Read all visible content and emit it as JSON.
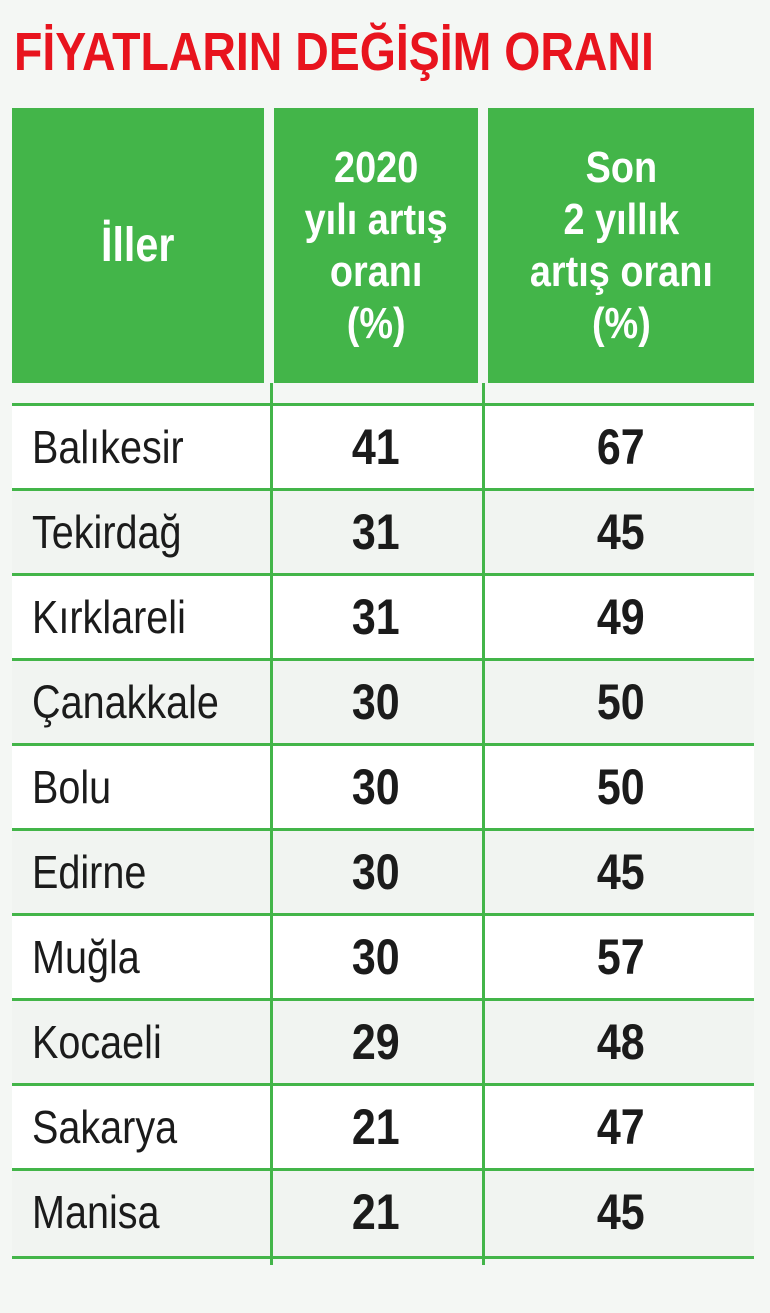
{
  "title": "FİYATLARIN DEĞİŞİM ORANI",
  "chart_data": {
    "type": "table",
    "columns": [
      "İller",
      "2020\nyılı artış\noranı\n(%)",
      "Son\n2 yıllık\nartış oranı\n(%)"
    ],
    "rows": [
      [
        "Balıkesir",
        41,
        67
      ],
      [
        "Tekirdağ",
        31,
        45
      ],
      [
        "Kırklareli",
        31,
        49
      ],
      [
        "Çanakkale",
        30,
        50
      ],
      [
        "Bolu",
        30,
        50
      ],
      [
        "Edirne",
        30,
        45
      ],
      [
        "Muğla",
        30,
        57
      ],
      [
        "Kocaeli",
        29,
        48
      ],
      [
        "Sakarya",
        21,
        47
      ],
      [
        "Manisa",
        21,
        45
      ]
    ]
  },
  "colors": {
    "title": "#e8141e",
    "header_bg": "#43b549",
    "header_text": "#ffffff",
    "grid": "#43b549",
    "background": "#f4f7f4"
  }
}
